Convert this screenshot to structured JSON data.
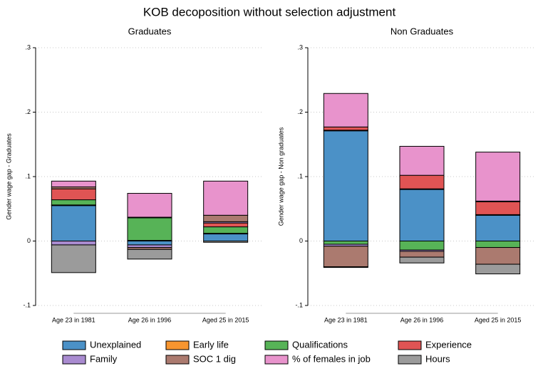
{
  "title": "KOB decoposition without selection adjustment",
  "chart_data": [
    {
      "type": "stacked-bar",
      "subtitle": "Graduates",
      "y_label": "Gender wage gap - Graduates",
      "categories": [
        "Age 23 in 1981",
        "Age 26 in 1996",
        "Aged 25 in 2015"
      ],
      "ylim": [
        -0.1,
        0.3
      ],
      "yticks": [
        {
          "value": -0.1,
          "label": "-.1"
        },
        0,
        {
          "value": 0.1,
          "label": ".1"
        },
        {
          "value": 0.2,
          "label": ".2"
        },
        {
          "value": 0.3,
          "label": ".3"
        }
      ],
      "grid": true,
      "series": [
        {
          "name": "Unexplained",
          "color": "#4b91c7",
          "values": [
            0.055,
            -0.006,
            0.011
          ]
        },
        {
          "name": "Early life",
          "color": "#f7952f",
          "values": [
            0.001,
            0.001,
            0.001
          ]
        },
        {
          "name": "Qualifications",
          "color": "#57b357",
          "values": [
            0.008,
            0.035,
            0.01
          ]
        },
        {
          "name": "Experience",
          "color": "#e05454",
          "values": [
            0.017,
            0.001,
            0.006
          ]
        },
        {
          "name": "Family",
          "color": "#a98bd0",
          "values": [
            -0.006,
            -0.004,
            0.002
          ]
        },
        {
          "name": "SOC 1 dig",
          "color": "#ab7a6f",
          "values": [
            0.003,
            -0.003,
            0.01
          ]
        },
        {
          "name": "% of females in job",
          "color": "#e893cc",
          "values": [
            0.009,
            0.037,
            0.053
          ]
        },
        {
          "name": "Hours",
          "color": "#9b9b9b",
          "values": [
            -0.043,
            -0.015,
            -0.002
          ]
        }
      ]
    },
    {
      "type": "stacked-bar",
      "subtitle": "Non Graduates",
      "y_label": "Gender wage gap - Non graduates",
      "categories": [
        "Age 23 in 1981",
        "Age 26 in 1996",
        "Aged 25 in 2015"
      ],
      "ylim": [
        -0.1,
        0.3
      ],
      "yticks": [
        {
          "value": -0.1,
          "label": "-.1"
        },
        0,
        {
          "value": 0.1,
          "label": ".1"
        },
        {
          "value": 0.2,
          "label": ".2"
        },
        {
          "value": 0.3,
          "label": ".3"
        }
      ],
      "grid": true,
      "series": [
        {
          "name": "Unexplained",
          "color": "#4b91c7",
          "values": [
            0.171,
            0.08,
            0.04
          ]
        },
        {
          "name": "Early life",
          "color": "#f7952f",
          "values": [
            0.001,
            0.001,
            0.001
          ]
        },
        {
          "name": "Qualifications",
          "color": "#57b357",
          "values": [
            -0.005,
            -0.014,
            -0.01
          ]
        },
        {
          "name": "Experience",
          "color": "#e05454",
          "values": [
            0.005,
            0.021,
            0.02
          ]
        },
        {
          "name": "Family",
          "color": "#a98bd0",
          "values": [
            -0.003,
            -0.002,
            0.001
          ]
        },
        {
          "name": "SOC 1 dig",
          "color": "#ab7a6f",
          "values": [
            -0.032,
            -0.009,
            -0.026
          ]
        },
        {
          "name": "% of females in job",
          "color": "#e893cc",
          "values": [
            0.052,
            0.045,
            0.076
          ]
        },
        {
          "name": "Hours",
          "color": "#9b9b9b",
          "values": [
            -0.001,
            -0.009,
            -0.015
          ]
        }
      ]
    }
  ]
}
